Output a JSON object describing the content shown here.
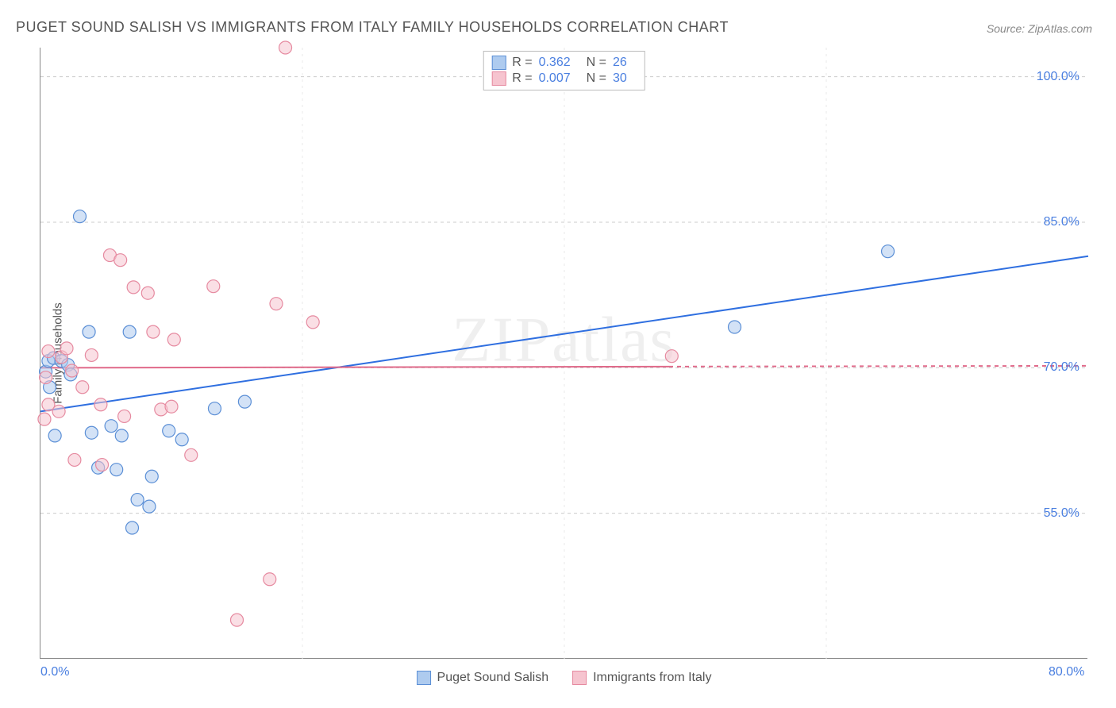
{
  "title": "PUGET SOUND SALISH VS IMMIGRANTS FROM ITALY FAMILY HOUSEHOLDS CORRELATION CHART",
  "source": "Source: ZipAtlas.com",
  "watermark": "ZIPatlas",
  "y_axis_label": "Family Households",
  "chart": {
    "type": "scatter",
    "xlim": [
      0,
      80
    ],
    "ylim": [
      40,
      103
    ],
    "x_ticks": [
      0,
      20,
      40,
      60,
      80
    ],
    "x_tick_labels": [
      "0.0%",
      "",
      "",
      "",
      "80.0%"
    ],
    "y_ticks": [
      55,
      70,
      85,
      100
    ],
    "y_tick_labels": [
      "55.0%",
      "70.0%",
      "85.0%",
      "100.0%"
    ],
    "grid_color": "#cccccc",
    "background_color": "#ffffff",
    "marker_radius": 8,
    "marker_opacity": 0.55,
    "series": [
      {
        "name": "Puget Sound Salish",
        "color_fill": "#aecbef",
        "color_stroke": "#5b8fd6",
        "R": "0.362",
        "N": "26",
        "trend": {
          "x1": 0,
          "y1": 65.5,
          "x2": 80,
          "y2": 81.5,
          "color": "#2f6fe0",
          "width": 2
        },
        "points": [
          [
            0.4,
            69.6
          ],
          [
            0.7,
            68.0
          ],
          [
            0.6,
            70.7
          ],
          [
            1.1,
            63.0
          ],
          [
            1.0,
            71.0
          ],
          [
            1.6,
            70.7
          ],
          [
            2.1,
            70.3
          ],
          [
            2.3,
            69.3
          ],
          [
            3.0,
            85.6
          ],
          [
            3.7,
            73.7
          ],
          [
            3.9,
            63.3
          ],
          [
            4.4,
            59.7
          ],
          [
            5.4,
            64.0
          ],
          [
            5.8,
            59.5
          ],
          [
            6.2,
            63.0
          ],
          [
            6.8,
            73.7
          ],
          [
            7.0,
            53.5
          ],
          [
            7.4,
            56.4
          ],
          [
            8.3,
            55.7
          ],
          [
            8.5,
            58.8
          ],
          [
            9.8,
            63.5
          ],
          [
            10.8,
            62.6
          ],
          [
            13.3,
            65.8
          ],
          [
            15.6,
            66.5
          ],
          [
            53.0,
            74.2
          ],
          [
            64.7,
            82.0
          ]
        ]
      },
      {
        "name": "Immigrants from Italy",
        "color_fill": "#f6c4cf",
        "color_stroke": "#e68aa0",
        "R": "0.007",
        "N": "30",
        "trend": {
          "x1": 0,
          "y1": 70.0,
          "x2": 80,
          "y2": 70.2,
          "color": "#e06a8a",
          "width": 2,
          "dash_after_x": 48
        },
        "points": [
          [
            0.3,
            64.7
          ],
          [
            0.4,
            69.0
          ],
          [
            0.6,
            66.2
          ],
          [
            0.6,
            71.7
          ],
          [
            1.4,
            65.5
          ],
          [
            1.6,
            71.1
          ],
          [
            2.0,
            72.0
          ],
          [
            2.4,
            69.7
          ],
          [
            2.6,
            60.5
          ],
          [
            3.2,
            68.0
          ],
          [
            3.9,
            71.3
          ],
          [
            4.6,
            66.2
          ],
          [
            4.7,
            60.0
          ],
          [
            5.3,
            81.6
          ],
          [
            6.1,
            81.1
          ],
          [
            6.4,
            65.0
          ],
          [
            7.1,
            78.3
          ],
          [
            8.2,
            77.7
          ],
          [
            8.6,
            73.7
          ],
          [
            9.2,
            65.7
          ],
          [
            10.0,
            66.0
          ],
          [
            10.2,
            72.9
          ],
          [
            11.5,
            61.0
          ],
          [
            13.2,
            78.4
          ],
          [
            15.0,
            44.0
          ],
          [
            17.5,
            48.2
          ],
          [
            18.0,
            76.6
          ],
          [
            18.7,
            103.0
          ],
          [
            20.8,
            74.7
          ],
          [
            48.2,
            71.2
          ]
        ]
      }
    ]
  },
  "legend_bottom": [
    {
      "label": "Puget Sound Salish",
      "fill": "#aecbef",
      "stroke": "#5b8fd6"
    },
    {
      "label": "Immigrants from Italy",
      "fill": "#f6c4cf",
      "stroke": "#e68aa0"
    }
  ]
}
